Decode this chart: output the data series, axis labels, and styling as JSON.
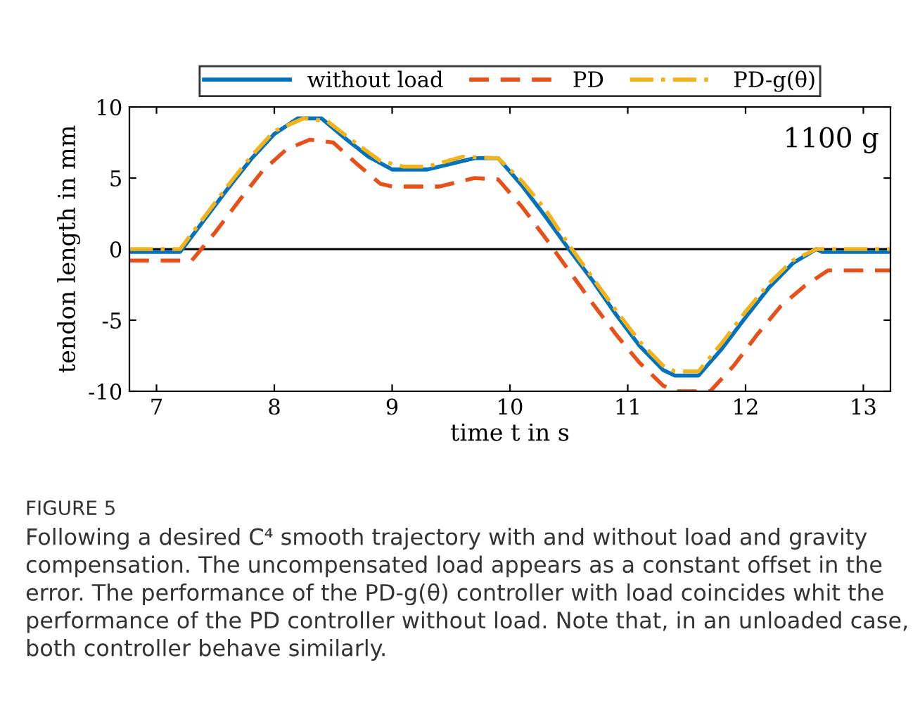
{
  "chart_data": {
    "type": "line",
    "xlabel": "time t in s",
    "ylabel": "tendon length in mm",
    "xlim": [
      6.77,
      13.23
    ],
    "ylim": [
      -10,
      10
    ],
    "xticks": [
      7,
      8,
      9,
      10,
      11,
      12,
      13
    ],
    "yticks": [
      {
        "value": -10,
        "label": "-10"
      },
      {
        "value": -5,
        "label": "-5"
      },
      0,
      5,
      10
    ],
    "grid": false,
    "legend": "top",
    "marker": "none",
    "ref_lines": [
      {
        "axis": "y",
        "value": 0,
        "color": "#000000",
        "line_style": "solid"
      }
    ],
    "series": [
      {
        "name": "without load",
        "color": "#0072bd",
        "line_style": "solid",
        "x": [
          6.77,
          7.2,
          7.4,
          7.6,
          7.8,
          8.0,
          8.2,
          8.4,
          8.6,
          8.8,
          9.0,
          9.3,
          9.5,
          9.7,
          9.9,
          10.1,
          10.3,
          10.5,
          10.7,
          10.9,
          11.1,
          11.3,
          11.4,
          11.6,
          11.8,
          12.0,
          12.2,
          12.4,
          12.6,
          12.65,
          13.23
        ],
        "values": [
          -0.2,
          -0.2,
          2,
          4.2,
          6.3,
          8.1,
          9.2,
          9.2,
          7.8,
          6.5,
          5.6,
          5.6,
          6.0,
          6.4,
          6.4,
          4.5,
          2.3,
          0,
          -2.2,
          -4.6,
          -6.8,
          -8.5,
          -8.9,
          -8.9,
          -7.0,
          -4.8,
          -2.7,
          -1.0,
          0,
          -0.2,
          -0.2
        ]
      },
      {
        "name": "PD",
        "color": "#e8501a",
        "line_style": "dashed",
        "x": [
          6.77,
          7.3,
          7.5,
          7.7,
          7.9,
          8.1,
          8.3,
          8.5,
          8.7,
          8.9,
          9.0,
          9.4,
          9.7,
          9.9,
          10.1,
          10.3,
          10.5,
          10.7,
          10.9,
          11.1,
          11.3,
          11.4,
          11.7,
          11.9,
          12.1,
          12.3,
          12.5,
          12.7,
          13.23
        ],
        "values": [
          -0.8,
          -0.8,
          1.2,
          3.4,
          5.5,
          7.0,
          7.7,
          7.5,
          6.0,
          4.6,
          4.4,
          4.4,
          5.0,
          4.9,
          3.0,
          0.8,
          -1.5,
          -3.8,
          -6,
          -8,
          -9.6,
          -10,
          -10,
          -8.2,
          -6,
          -4,
          -2.6,
          -1.5,
          -1.5
        ]
      },
      {
        "name": "PD-g(θ)",
        "color": "#f2b21a",
        "line_style": "dashdot",
        "x": [
          6.77,
          7.2,
          7.4,
          7.6,
          7.8,
          8.0,
          8.25,
          8.45,
          8.7,
          8.9,
          9.1,
          9.3,
          9.6,
          9.9,
          10.1,
          10.3,
          10.5,
          10.7,
          10.9,
          11.1,
          11.3,
          11.4,
          11.6,
          11.8,
          12.0,
          12.2,
          12.4,
          12.6,
          13.23
        ],
        "values": [
          0,
          0,
          2.2,
          4.4,
          6.5,
          8.3,
          9.2,
          9.0,
          7.4,
          6.2,
          5.8,
          5.8,
          6.5,
          6.4,
          4.8,
          2.8,
          0.3,
          -2,
          -4.3,
          -6.5,
          -8.2,
          -8.6,
          -8.6,
          -6.6,
          -4.4,
          -2.4,
          -0.8,
          0,
          0
        ]
      }
    ],
    "annotations": [
      "1100 g",
      "FIGURE 5",
      "Following a desired C⁴ smooth trajectory with and without load and gravity compensation. The uncompensated load appears as a constant offset in the error. The performance of the PD-g(θ) controller with load coincides whit the performance of the PD controller without load. Note that, in an unloaded case, both controller behave similarly."
    ]
  }
}
